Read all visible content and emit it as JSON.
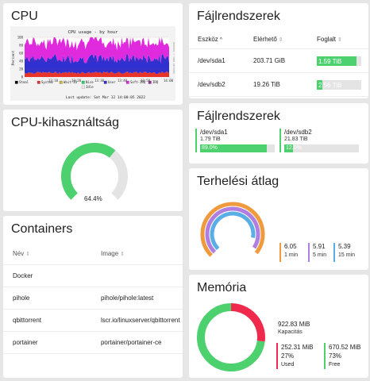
{
  "colors": {
    "green": "#4dd06e",
    "track": "#e4e4e4",
    "red": "#f02a4c",
    "orange": "#f09a3e",
    "purple": "#b07ee0",
    "blue": "#5aaee6"
  },
  "cpu": {
    "title": "CPU",
    "graph": {
      "title": "CPU usage - by hour",
      "ylabel": "Percent",
      "y_ticks": [
        "100",
        "80",
        "60",
        "40",
        "20",
        "0"
      ],
      "x_ticks": [
        "13:10",
        "13:20",
        "13:30",
        "13:40",
        "13:50",
        "14:00"
      ],
      "legend": [
        "Steal",
        "System",
        "Wait-IO",
        "Nice",
        "User",
        "Soft-IRQ",
        "IRQ",
        "Idle"
      ],
      "legend_colors": [
        "#000000",
        "#e8332a",
        "#d4b43a",
        "#2ad46b",
        "#3030d0",
        "#e02ae0",
        "#a02aa0",
        "#f0f0f0"
      ],
      "footer": "Last update: Sat Mar 12 14:00:05 2022",
      "sidebar_text": "RRDTOOL / TOBI OETIKER"
    }
  },
  "cpu_usage": {
    "title": "CPU-kihasználtság",
    "value": 0.644,
    "label": "64.4%"
  },
  "containers": {
    "title": "Containers",
    "headers": [
      "Név",
      "Image"
    ],
    "rows": [
      [
        "Docker",
        ""
      ],
      [
        "pihole",
        "pihole/pihole:latest"
      ],
      [
        "qbittorrent",
        "lscr.io/linuxserver/qbittorrent"
      ],
      [
        "portainer",
        "portainer/portainer-ce"
      ]
    ]
  },
  "filesystems": {
    "title": "Fájlrendszerek",
    "headers": [
      "Eszköz",
      "Elérhető",
      "Foglalt"
    ],
    "rows": [
      {
        "device": "/dev/sda1",
        "avail": "203.71 GiB",
        "used": "1.59 TiB",
        "pct": 0.89
      },
      {
        "device": "/dev/sdb2",
        "avail": "19.26 TiB",
        "used": "2.56 TiB",
        "pct": 0.12
      }
    ]
  },
  "filesystems2": {
    "title": "Fájlrendszerek",
    "items": [
      {
        "device": "/dev/sda1",
        "size": "1.79 TiB",
        "pct": 0.89,
        "label": "89.0%"
      },
      {
        "device": "/dev/sdb2",
        "size": "21.83 TiB",
        "pct": 0.12,
        "label": "12.0%"
      }
    ]
  },
  "load": {
    "title": "Terhelési átlag",
    "values": [
      {
        "value": "6.05",
        "label": "1 min",
        "num": 6.05
      },
      {
        "value": "5.91",
        "label": "5 min",
        "num": 5.91
      },
      {
        "value": "5.39",
        "label": "15 min",
        "num": 5.39
      }
    ]
  },
  "memory": {
    "title": "Memória",
    "capacity": "922.83 MiB",
    "capacity_label": "Kapacitás",
    "used": {
      "value": "252.31 MiB",
      "pct": "27%",
      "label": "Used",
      "num": 0.27
    },
    "free": {
      "value": "670.52 MiB",
      "pct": "73%",
      "label": "Free",
      "num": 0.73
    }
  }
}
